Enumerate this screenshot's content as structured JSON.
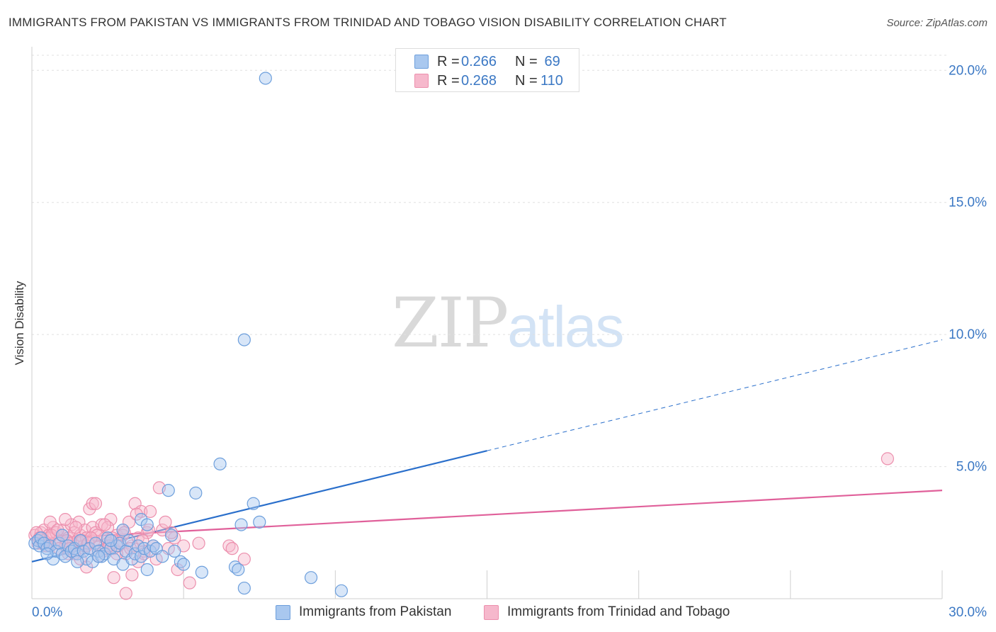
{
  "title": "IMMIGRANTS FROM PAKISTAN VS IMMIGRANTS FROM TRINIDAD AND TOBAGO VISION DISABILITY CORRELATION CHART",
  "source": "Source: ZipAtlas.com",
  "watermark": {
    "zip": "ZIP",
    "atlas": "atlas"
  },
  "colors": {
    "blue_fill": "#a9c8ef",
    "blue_stroke": "#6d9fdc",
    "blue_line": "#2a6fcb",
    "pink_fill": "#f6b8cc",
    "pink_stroke": "#ec8fad",
    "pink_line": "#e0609a",
    "grid": "#e0e0e0",
    "tick_text": "#3b78c4"
  },
  "legend_top": [
    {
      "r_label": "R =",
      "r_value": "0.266",
      "n_label": "N =",
      "n_value": " 69"
    },
    {
      "r_label": "R =",
      "r_value": "0.268",
      "n_label": "N =",
      "n_value": "110"
    }
  ],
  "chart_data": {
    "type": "scatter",
    "title": "IMMIGRANTS FROM PAKISTAN VS IMMIGRANTS FROM TRINIDAD AND TOBAGO VISION DISABILITY CORRELATION CHART",
    "xlabel": "",
    "ylabel": "Vision Disability",
    "xlim": [
      0,
      30
    ],
    "ylim": [
      0,
      21
    ],
    "x_tick_labels": [
      {
        "value": 0,
        "label": "0.0%"
      },
      {
        "value": 30,
        "label": "30.0%"
      }
    ],
    "y_tick_labels": [
      {
        "value": 5,
        "label": "5.0%"
      },
      {
        "value": 10,
        "label": "10.0%"
      },
      {
        "value": 15,
        "label": "15.0%"
      },
      {
        "value": 20,
        "label": "20.0%"
      }
    ],
    "grid": true,
    "series": [
      {
        "name": "Immigrants from Pakistan",
        "color": "#6d9fdc",
        "r": 0.266,
        "n": 69,
        "points": [
          [
            0.1,
            2.1
          ],
          [
            0.2,
            2.2
          ],
          [
            0.25,
            2.0
          ],
          [
            0.3,
            2.3
          ],
          [
            0.4,
            2.1
          ],
          [
            0.5,
            1.9
          ],
          [
            0.6,
            2.0
          ],
          [
            0.7,
            1.5
          ],
          [
            0.8,
            1.8
          ],
          [
            0.9,
            2.1
          ],
          [
            1.0,
            1.7
          ],
          [
            1.1,
            1.6
          ],
          [
            1.2,
            2.0
          ],
          [
            1.3,
            1.8
          ],
          [
            1.4,
            1.9
          ],
          [
            1.5,
            1.7
          ],
          [
            1.6,
            2.2
          ],
          [
            1.7,
            1.8
          ],
          [
            1.8,
            1.5
          ],
          [
            1.9,
            1.9
          ],
          [
            2.0,
            1.4
          ],
          [
            2.1,
            2.1
          ],
          [
            2.2,
            1.8
          ],
          [
            2.3,
            1.6
          ],
          [
            2.4,
            1.7
          ],
          [
            2.5,
            2.3
          ],
          [
            2.6,
            1.9
          ],
          [
            2.7,
            1.5
          ],
          [
            2.8,
            2.0
          ],
          [
            2.9,
            2.1
          ],
          [
            3.0,
            1.3
          ],
          [
            3.1,
            1.8
          ],
          [
            3.2,
            2.2
          ],
          [
            3.3,
            1.5
          ],
          [
            3.4,
            1.7
          ],
          [
            3.5,
            2.0
          ],
          [
            3.6,
            1.6
          ],
          [
            3.7,
            1.9
          ],
          [
            3.8,
            1.1
          ],
          [
            3.9,
            1.8
          ],
          [
            4.0,
            2.0
          ],
          [
            1.0,
            2.4
          ],
          [
            3.6,
            3.0
          ],
          [
            3.8,
            2.8
          ],
          [
            4.1,
            1.9
          ],
          [
            4.3,
            1.6
          ],
          [
            4.5,
            4.1
          ],
          [
            4.7,
            1.8
          ],
          [
            4.9,
            1.4
          ],
          [
            5.0,
            1.3
          ],
          [
            5.4,
            4.0
          ],
          [
            5.6,
            1.0
          ],
          [
            6.2,
            5.1
          ],
          [
            6.7,
            1.2
          ],
          [
            6.8,
            1.1
          ],
          [
            6.9,
            2.8
          ],
          [
            7.0,
            0.4
          ],
          [
            7.3,
            3.6
          ],
          [
            7.5,
            2.9
          ],
          [
            9.2,
            0.8
          ],
          [
            10.2,
            0.3
          ],
          [
            7.0,
            9.8
          ],
          [
            7.7,
            19.7
          ],
          [
            0.5,
            1.7
          ],
          [
            1.5,
            1.4
          ],
          [
            2.2,
            1.6
          ],
          [
            3.0,
            2.6
          ],
          [
            4.6,
            2.4
          ],
          [
            2.6,
            2.2
          ]
        ],
        "trend": {
          "x_start": 0,
          "y_start": 1.4,
          "x_end": 15,
          "y_end": 5.6,
          "dashed_to_x": 30,
          "dashed_to_y": 9.8
        }
      },
      {
        "name": "Immigrants from Trinidad and Tobago",
        "color": "#ec8fad",
        "r": 0.268,
        "n": 110,
        "points": [
          [
            0.1,
            2.4
          ],
          [
            0.2,
            2.2
          ],
          [
            0.3,
            2.5
          ],
          [
            0.35,
            2.3
          ],
          [
            0.4,
            2.6
          ],
          [
            0.5,
            2.0
          ],
          [
            0.55,
            2.4
          ],
          [
            0.6,
            2.3
          ],
          [
            0.7,
            2.7
          ],
          [
            0.75,
            2.1
          ],
          [
            0.8,
            2.5
          ],
          [
            0.9,
            2.2
          ],
          [
            1.0,
            2.4
          ],
          [
            1.05,
            2.6
          ],
          [
            1.1,
            2.0
          ],
          [
            1.2,
            2.3
          ],
          [
            1.3,
            2.8
          ],
          [
            1.35,
            2.1
          ],
          [
            1.4,
            2.5
          ],
          [
            1.5,
            2.2
          ],
          [
            1.55,
            2.9
          ],
          [
            1.6,
            2.4
          ],
          [
            1.7,
            2.0
          ],
          [
            1.75,
            2.6
          ],
          [
            1.8,
            2.3
          ],
          [
            1.9,
            1.9
          ],
          [
            2.0,
            2.7
          ],
          [
            2.05,
            2.2
          ],
          [
            2.1,
            2.5
          ],
          [
            2.2,
            2.0
          ],
          [
            2.3,
            2.8
          ],
          [
            2.35,
            1.8
          ],
          [
            2.4,
            2.3
          ],
          [
            2.5,
            2.1
          ],
          [
            2.6,
            3.0
          ],
          [
            2.7,
            1.9
          ],
          [
            2.8,
            2.4
          ],
          [
            2.9,
            2.2
          ],
          [
            3.0,
            2.6
          ],
          [
            3.1,
            1.7
          ],
          [
            3.2,
            2.9
          ],
          [
            3.3,
            2.0
          ],
          [
            3.4,
            3.6
          ],
          [
            3.5,
            2.3
          ],
          [
            3.6,
            3.3
          ],
          [
            3.7,
            1.8
          ],
          [
            3.8,
            2.5
          ],
          [
            3.9,
            3.3
          ],
          [
            4.0,
            2.0
          ],
          [
            4.2,
            4.2
          ],
          [
            4.3,
            2.6
          ],
          [
            4.5,
            1.9
          ],
          [
            4.7,
            2.3
          ],
          [
            4.8,
            1.1
          ],
          [
            5.0,
            2.0
          ],
          [
            5.2,
            0.6
          ],
          [
            5.5,
            2.1
          ],
          [
            6.5,
            2.0
          ],
          [
            7.0,
            1.5
          ],
          [
            1.9,
            3.4
          ],
          [
            1.1,
            3.0
          ],
          [
            2.0,
            3.6
          ],
          [
            2.1,
            3.6
          ],
          [
            1.6,
            1.5
          ],
          [
            1.8,
            1.2
          ],
          [
            2.5,
            2.7
          ],
          [
            2.7,
            0.8
          ],
          [
            3.1,
            0.2
          ],
          [
            3.3,
            0.9
          ],
          [
            1.2,
            1.7
          ],
          [
            0.6,
            2.9
          ],
          [
            0.9,
            1.9
          ],
          [
            1.4,
            1.7
          ],
          [
            1.8,
            2.0
          ],
          [
            2.2,
            1.6
          ],
          [
            2.4,
            2.8
          ],
          [
            2.8,
            1.7
          ],
          [
            3.0,
            2.4
          ],
          [
            3.5,
            1.4
          ],
          [
            3.7,
            1.7
          ],
          [
            4.4,
            2.9
          ],
          [
            4.6,
            2.5
          ],
          [
            6.6,
            1.9
          ],
          [
            0.2,
            2.1
          ],
          [
            0.3,
            2.3
          ],
          [
            0.4,
            2.2
          ],
          [
            0.45,
            2.0
          ],
          [
            0.65,
            2.4
          ],
          [
            0.85,
            2.6
          ],
          [
            1.15,
            2.2
          ],
          [
            1.25,
            1.9
          ],
          [
            1.45,
            2.7
          ],
          [
            1.65,
            2.2
          ],
          [
            1.85,
            2.1
          ],
          [
            2.15,
            2.4
          ],
          [
            2.45,
            1.9
          ],
          [
            2.65,
            2.3
          ],
          [
            2.85,
            2.0
          ],
          [
            3.05,
            2.5
          ],
          [
            3.25,
            1.9
          ],
          [
            3.45,
            3.2
          ],
          [
            3.65,
            2.2
          ],
          [
            3.85,
            2.6
          ],
          [
            4.1,
            1.5
          ],
          [
            0.15,
            2.5
          ],
          [
            0.25,
            2.3
          ],
          [
            0.35,
            2.1
          ],
          [
            1.95,
            2.3
          ],
          [
            2.55,
            2.0
          ],
          [
            28.2,
            5.3
          ]
        ],
        "trend": {
          "x_start": 0,
          "y_start": 2.25,
          "x_end": 30,
          "y_end": 4.1
        }
      }
    ]
  },
  "legend_bottom": [
    {
      "label": "Immigrants from Pakistan"
    },
    {
      "label": "Immigrants from Trinidad and Tobago"
    }
  ]
}
